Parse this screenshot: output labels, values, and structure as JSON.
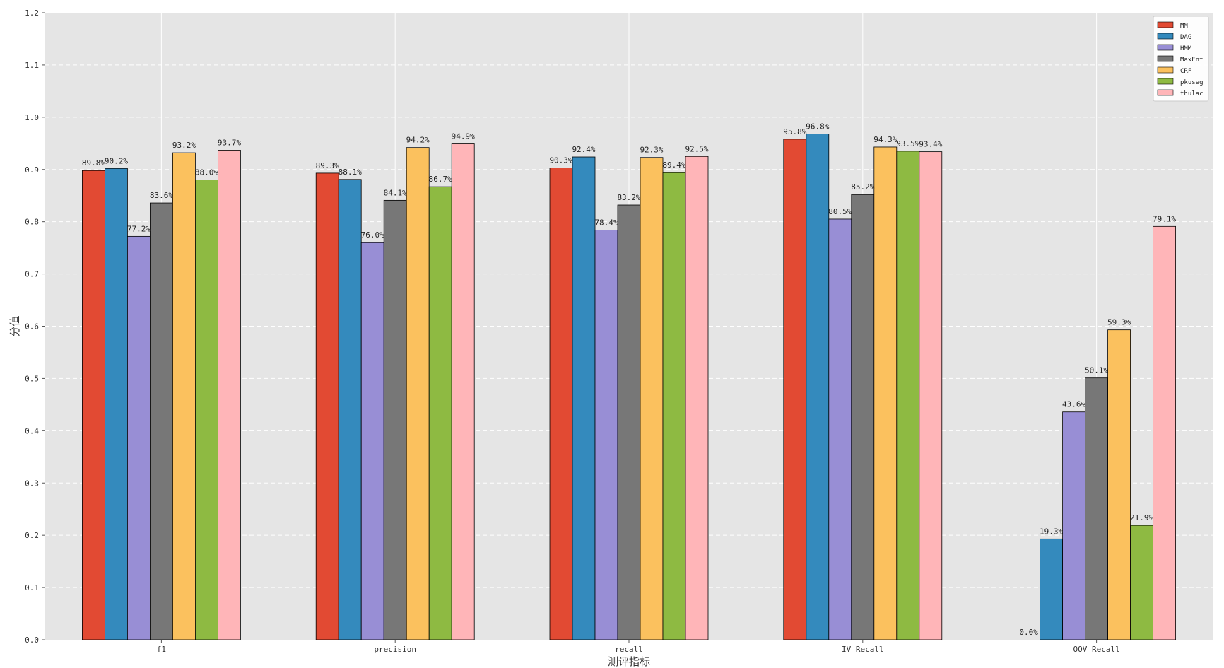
{
  "chart_data": {
    "type": "bar",
    "xlabel": "测评指标",
    "ylabel": "分值",
    "ylim": [
      0,
      1.2
    ],
    "yticks": [
      "0.0",
      "0.1",
      "0.2",
      "0.3",
      "0.4",
      "0.5",
      "0.6",
      "0.7",
      "0.8",
      "0.9",
      "1.0",
      "1.1",
      "1.2"
    ],
    "grid": true,
    "legend_position": "top-right",
    "categories": [
      "f1",
      "precision",
      "recall",
      "IV Recall",
      "OOV Recall"
    ],
    "series": [
      {
        "name": "MM",
        "color": "#E24A33",
        "values": [
          0.898,
          0.893,
          0.903,
          0.958,
          0.0
        ],
        "labels": [
          "89.8%",
          "89.3%",
          "90.3%",
          "95.8%",
          "0.0%"
        ]
      },
      {
        "name": "DAG",
        "color": "#348ABD",
        "values": [
          0.902,
          0.881,
          0.924,
          0.968,
          0.193
        ],
        "labels": [
          "90.2%",
          "88.1%",
          "92.4%",
          "96.8%",
          "19.3%"
        ]
      },
      {
        "name": "HMM",
        "color": "#988ED5",
        "values": [
          0.772,
          0.76,
          0.784,
          0.805,
          0.436
        ],
        "labels": [
          "77.2%",
          "76.0%",
          "78.4%",
          "80.5%",
          "43.6%"
        ]
      },
      {
        "name": "MaxEnt",
        "color": "#777777",
        "values": [
          0.836,
          0.841,
          0.832,
          0.852,
          0.501
        ],
        "labels": [
          "83.6%",
          "84.1%",
          "83.2%",
          "85.2%",
          "50.1%"
        ]
      },
      {
        "name": "CRF",
        "color": "#FBC15E",
        "values": [
          0.932,
          0.942,
          0.923,
          0.943,
          0.593
        ],
        "labels": [
          "93.2%",
          "94.2%",
          "92.3%",
          "94.3%",
          "59.3%"
        ]
      },
      {
        "name": "pkuseg",
        "color": "#8EBA42",
        "values": [
          0.88,
          0.867,
          0.894,
          0.935,
          0.219
        ],
        "labels": [
          "88.0%",
          "86.7%",
          "89.4%",
          "93.5%",
          "21.9%"
        ]
      },
      {
        "name": "thulac",
        "color": "#FFB5B8",
        "values": [
          0.937,
          0.949,
          0.925,
          0.934,
          0.791
        ],
        "labels": [
          "93.7%",
          "94.9%",
          "92.5%",
          "93.4%",
          "79.1%"
        ]
      }
    ]
  }
}
